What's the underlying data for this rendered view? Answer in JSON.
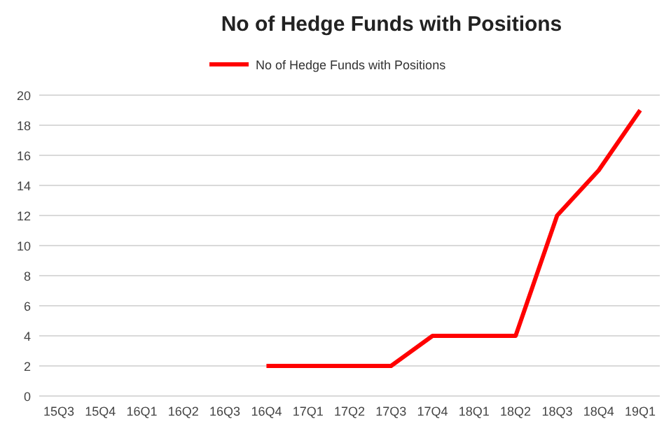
{
  "chart_data": {
    "type": "line",
    "title": "No of Hedge Funds with Positions",
    "categories": [
      "15Q3",
      "15Q4",
      "16Q1",
      "16Q2",
      "16Q3",
      "16Q4",
      "17Q1",
      "17Q2",
      "17Q3",
      "17Q4",
      "18Q1",
      "18Q2",
      "18Q3",
      "18Q4",
      "19Q1"
    ],
    "series": [
      {
        "name": "No of Hedge Funds with Positions",
        "color": "#ff0000",
        "values": [
          null,
          null,
          null,
          null,
          null,
          2,
          2,
          2,
          2,
          4,
          4,
          4,
          12,
          15,
          19
        ]
      }
    ],
    "ylim": [
      0,
      20
    ],
    "yticks": [
      0,
      2,
      4,
      6,
      8,
      10,
      12,
      14,
      16,
      18,
      20
    ],
    "grid": "y",
    "legend": "top",
    "marker": "none"
  }
}
